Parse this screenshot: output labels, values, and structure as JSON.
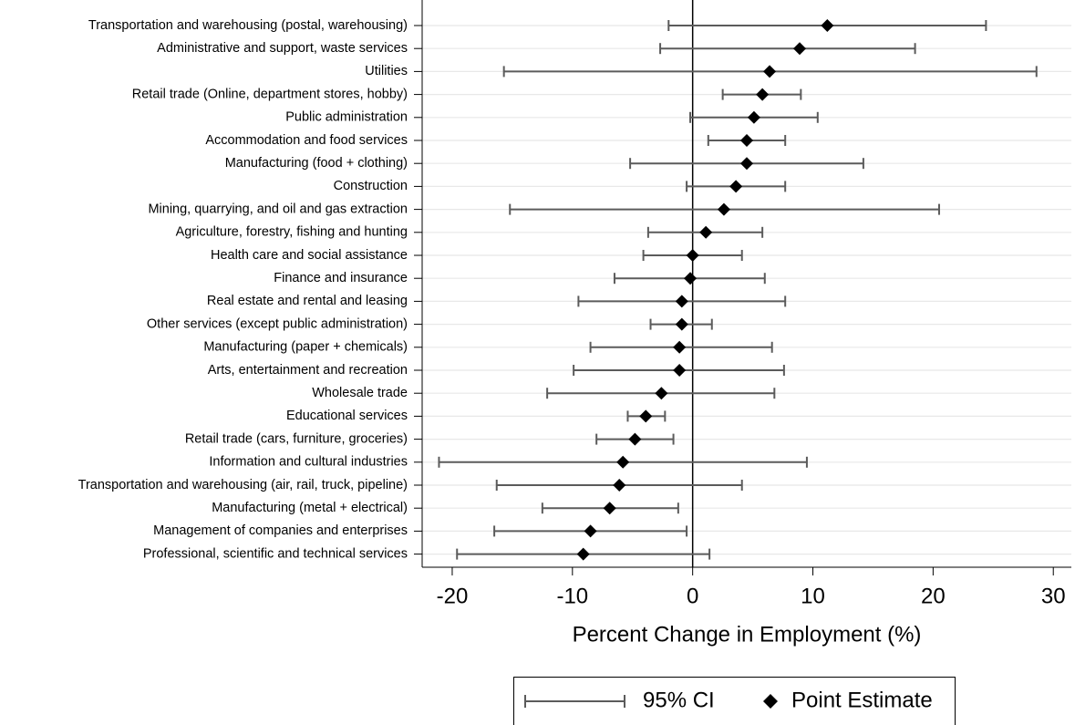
{
  "chart_data": {
    "type": "coefplot",
    "xlabel": "Percent Change in Employment (%)",
    "categories": [
      "Transportation and warehousing (postal, warehousing)",
      "Administrative and support, waste services",
      "Utilities",
      "Retail trade (Online, department stores, hobby)",
      "Public administration",
      "Accommodation and food services",
      "Manufacturing (food + clothing)",
      "Construction",
      "Mining, quarrying, and oil and gas extraction",
      "Agriculture, forestry, fishing and hunting",
      "Health care and social assistance",
      "Finance and insurance",
      "Real estate and rental and leasing",
      "Other services (except public administration)",
      "Manufacturing (paper + chemicals)",
      "Arts, entertainment and recreation",
      "Wholesale trade",
      "Educational services",
      "Retail trade (cars, furniture, groceries)",
      "Information and cultural industries",
      "Transportation and warehousing (air, rail, truck, pipeline)",
      "Manufacturing (metal + electrical)",
      "Management of companies and enterprises",
      "Professional, scientific and technical services"
    ],
    "series": [
      {
        "name": "95% CI",
        "color": "#5b5b5b",
        "low": [
          -2.0,
          -2.7,
          -15.7,
          2.5,
          -0.2,
          1.3,
          -5.2,
          -0.5,
          -15.2,
          -3.7,
          -4.1,
          -6.5,
          -9.5,
          -3.5,
          -8.5,
          -9.9,
          -12.1,
          -5.4,
          -8.0,
          -21.1,
          -16.3,
          -12.5,
          -16.5,
          -19.6
        ],
        "high": [
          24.4,
          18.5,
          28.6,
          9.0,
          10.4,
          7.7,
          14.2,
          7.7,
          20.5,
          5.8,
          4.1,
          6.0,
          7.7,
          1.6,
          6.6,
          7.6,
          6.8,
          -2.3,
          -1.6,
          9.5,
          4.1,
          -1.2,
          -0.5,
          1.4
        ]
      },
      {
        "name": "Point Estimate",
        "color": "#000000",
        "values": [
          11.2,
          8.9,
          6.4,
          5.8,
          5.1,
          4.5,
          4.5,
          3.6,
          2.6,
          1.1,
          0.0,
          -0.2,
          -0.9,
          -0.9,
          -1.1,
          -1.1,
          -2.6,
          -3.9,
          -4.8,
          -5.8,
          -6.1,
          -6.9,
          -8.5,
          -9.1
        ]
      }
    ],
    "xlim": [
      -22.5,
      31.5
    ],
    "xticks": [
      -20,
      -10,
      0,
      10,
      20,
      30
    ],
    "reference_line": 0,
    "grid": true
  }
}
